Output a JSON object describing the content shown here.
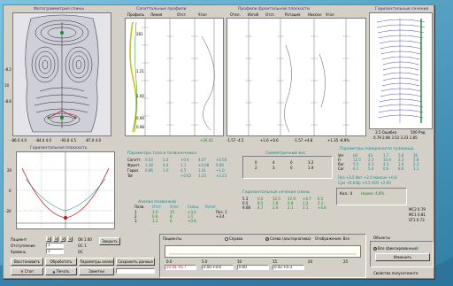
{
  "panels": {
    "topography": {
      "title": "Фотограмметрия спины",
      "left_ticks": [
        "-8.2",
        "10",
        "-8.8"
      ],
      "bottom_values": [
        "-86.0 4.0",
        "-84.0 4.0",
        "-93.0 4.5",
        "-87.0 4.0"
      ]
    },
    "profiles": {
      "title": "Сагиттальные профили",
      "col_heads": [
        "Профиль",
        "Линия",
        "Отст.",
        "Угол"
      ],
      "axis_values": [
        "281",
        "1.21",
        "1.00",
        "0.94",
        "0.98"
      ],
      "footer": "+26.42"
    },
    "frontal": {
      "title": "Профили фронтальной плоскости",
      "col_heads": [
        "Откл.",
        "Изгиб",
        "Отст.",
        "Ротация",
        "Наклон",
        "Угол"
      ],
      "footer": [
        "-1.57 -4.5",
        "+1.6 +6.6",
        "-1.57 +4.8",
        "+1.35 -8.9%"
      ]
    },
    "horizontal": {
      "title": "Горизонтальные сечения",
      "footer": [
        "3.5 Ошибка",
        "500 Ряд",
        "0.79 2.86 3.52 3.23 1.85"
      ]
    },
    "graph": {
      "title": "Горизонтальная плоскость",
      "ticks": [
        "20",
        "0",
        "-20"
      ]
    }
  },
  "tables": {
    "pelvis": {
      "title": "Параметры таза и позвоночника",
      "rows": [
        [
          "Сагитт.",
          "0.54",
          "2.4",
          "+0.6",
          "4.07",
          "+0.50"
        ],
        [
          "Фронт.",
          "1.38",
          "4.4",
          "1.1",
          "+0.08",
          "0.00"
        ],
        [
          "Гориз.",
          "0.86",
          "1.0",
          "4.5",
          "1.01",
          "+1.0"
        ],
        [
          "Tot",
          "",
          "",
          "+0.62",
          "1.23",
          "+2.23"
        ]
      ]
    },
    "symmetry": {
      "title": "Симметричный вес",
      "rows": [
        [
          "0",
          "4",
          "0",
          "3.2"
        ],
        [
          "2",
          "3",
          "0",
          "1.9"
        ]
      ]
    },
    "rotation": {
      "title": "Горизонтальные сечения спины",
      "rows": [
        [
          "5.3",
          "0.0",
          "12.5",
          "12.9",
          "+4.7",
          "6.5"
        ],
        [
          "0.5",
          "8.5",
          "1.8",
          "0.8",
          "1.2",
          "2.2"
        ],
        [
          "9.08",
          "4.7",
          "2.0",
          "2.1",
          "2.1",
          "+4.8"
        ]
      ]
    },
    "surface": {
      "title": "Параметры поверхности туловища",
      "rows": [
        [
          "Ver",
          "H2",
          "43",
          "1.7",
          "5.8",
          "36"
        ],
        [
          "Fr",
          "12.5",
          "2.3",
          "10.4",
          "2.3",
          "5.8"
        ],
        [
          "Ror",
          "5.5",
          "4.3",
          "4.3",
          "1.6",
          "2.3"
        ],
        [
          "Cor",
          "6.1",
          "5.4",
          "0.6",
          "8.8",
          "1.1"
        ]
      ],
      "extra": [
        "Поз +3.5 Инт +2.0 Наклон +0.8",
        "Сум +0.8 Вр +4.5 ACR +2.00"
      ],
      "norm": [
        "Кол.: 0",
        "Норма: 4,8%"
      ],
      "side": [
        "MC2 0.79",
        "MC1 0.81",
        "ST1 0.73"
      ]
    },
    "vertebra": {
      "title": "Анализ позвонков",
      "cols": [
        "Позв.",
        "Отст.",
        "Угол",
        "Смещ.",
        "Ротат."
      ],
      "rows": [
        [
          "1",
          "3.0",
          "15",
          "+3.2"
        ],
        [
          "2",
          "0.6",
          "8",
          "1.5"
        ],
        [
          "3",
          "1.2",
          "6",
          "+0.8"
        ]
      ],
      "extra": [
        "Поз. 1",
        "+3.4"
      ]
    }
  },
  "controls": {
    "patient": {
      "label": "Пациент",
      "values": [
        "1",
        "1",
        "1",
        "1"
      ],
      "tail": "Об 1.00"
    },
    "step": {
      "label": "Отступление",
      "value": "1",
      "tail": "ОС 1"
    },
    "level": {
      "label": "Уровень",
      "value": "1",
      "tail": "ОС"
    },
    "buttons": [
      "Восстановить",
      "Обработать",
      "Параметры анализа",
      "Сохранить данные"
    ],
    "action_buttons": [
      "Стоп",
      "Печать",
      "Заметки"
    ],
    "extra_button": "Закрыть",
    "radio_bar": {
      "left": "Пациенты",
      "opt1": "Справа",
      "opt2": "Слева (альтернатива)",
      "right": "Отображение: Все"
    },
    "slider_labels": [
      "0.0",
      "5.0",
      "10",
      "15",
      "20",
      "25"
    ],
    "slider_fields": [
      "20.44 +6.7",
      "0.00 +0.6",
      "0.00",
      "0.42 +0.3"
    ],
    "right_panel": {
      "title": "Объекты",
      "check": "Все (фиксированные)",
      "button": "Изменить",
      "footer": "Свойства полусегмента"
    }
  },
  "colors": {
    "accent_teal": "#168c8c",
    "accent_red": "#c02020",
    "accent_green": "#1a8c2a",
    "accent_blue": "#1b2f8c"
  }
}
